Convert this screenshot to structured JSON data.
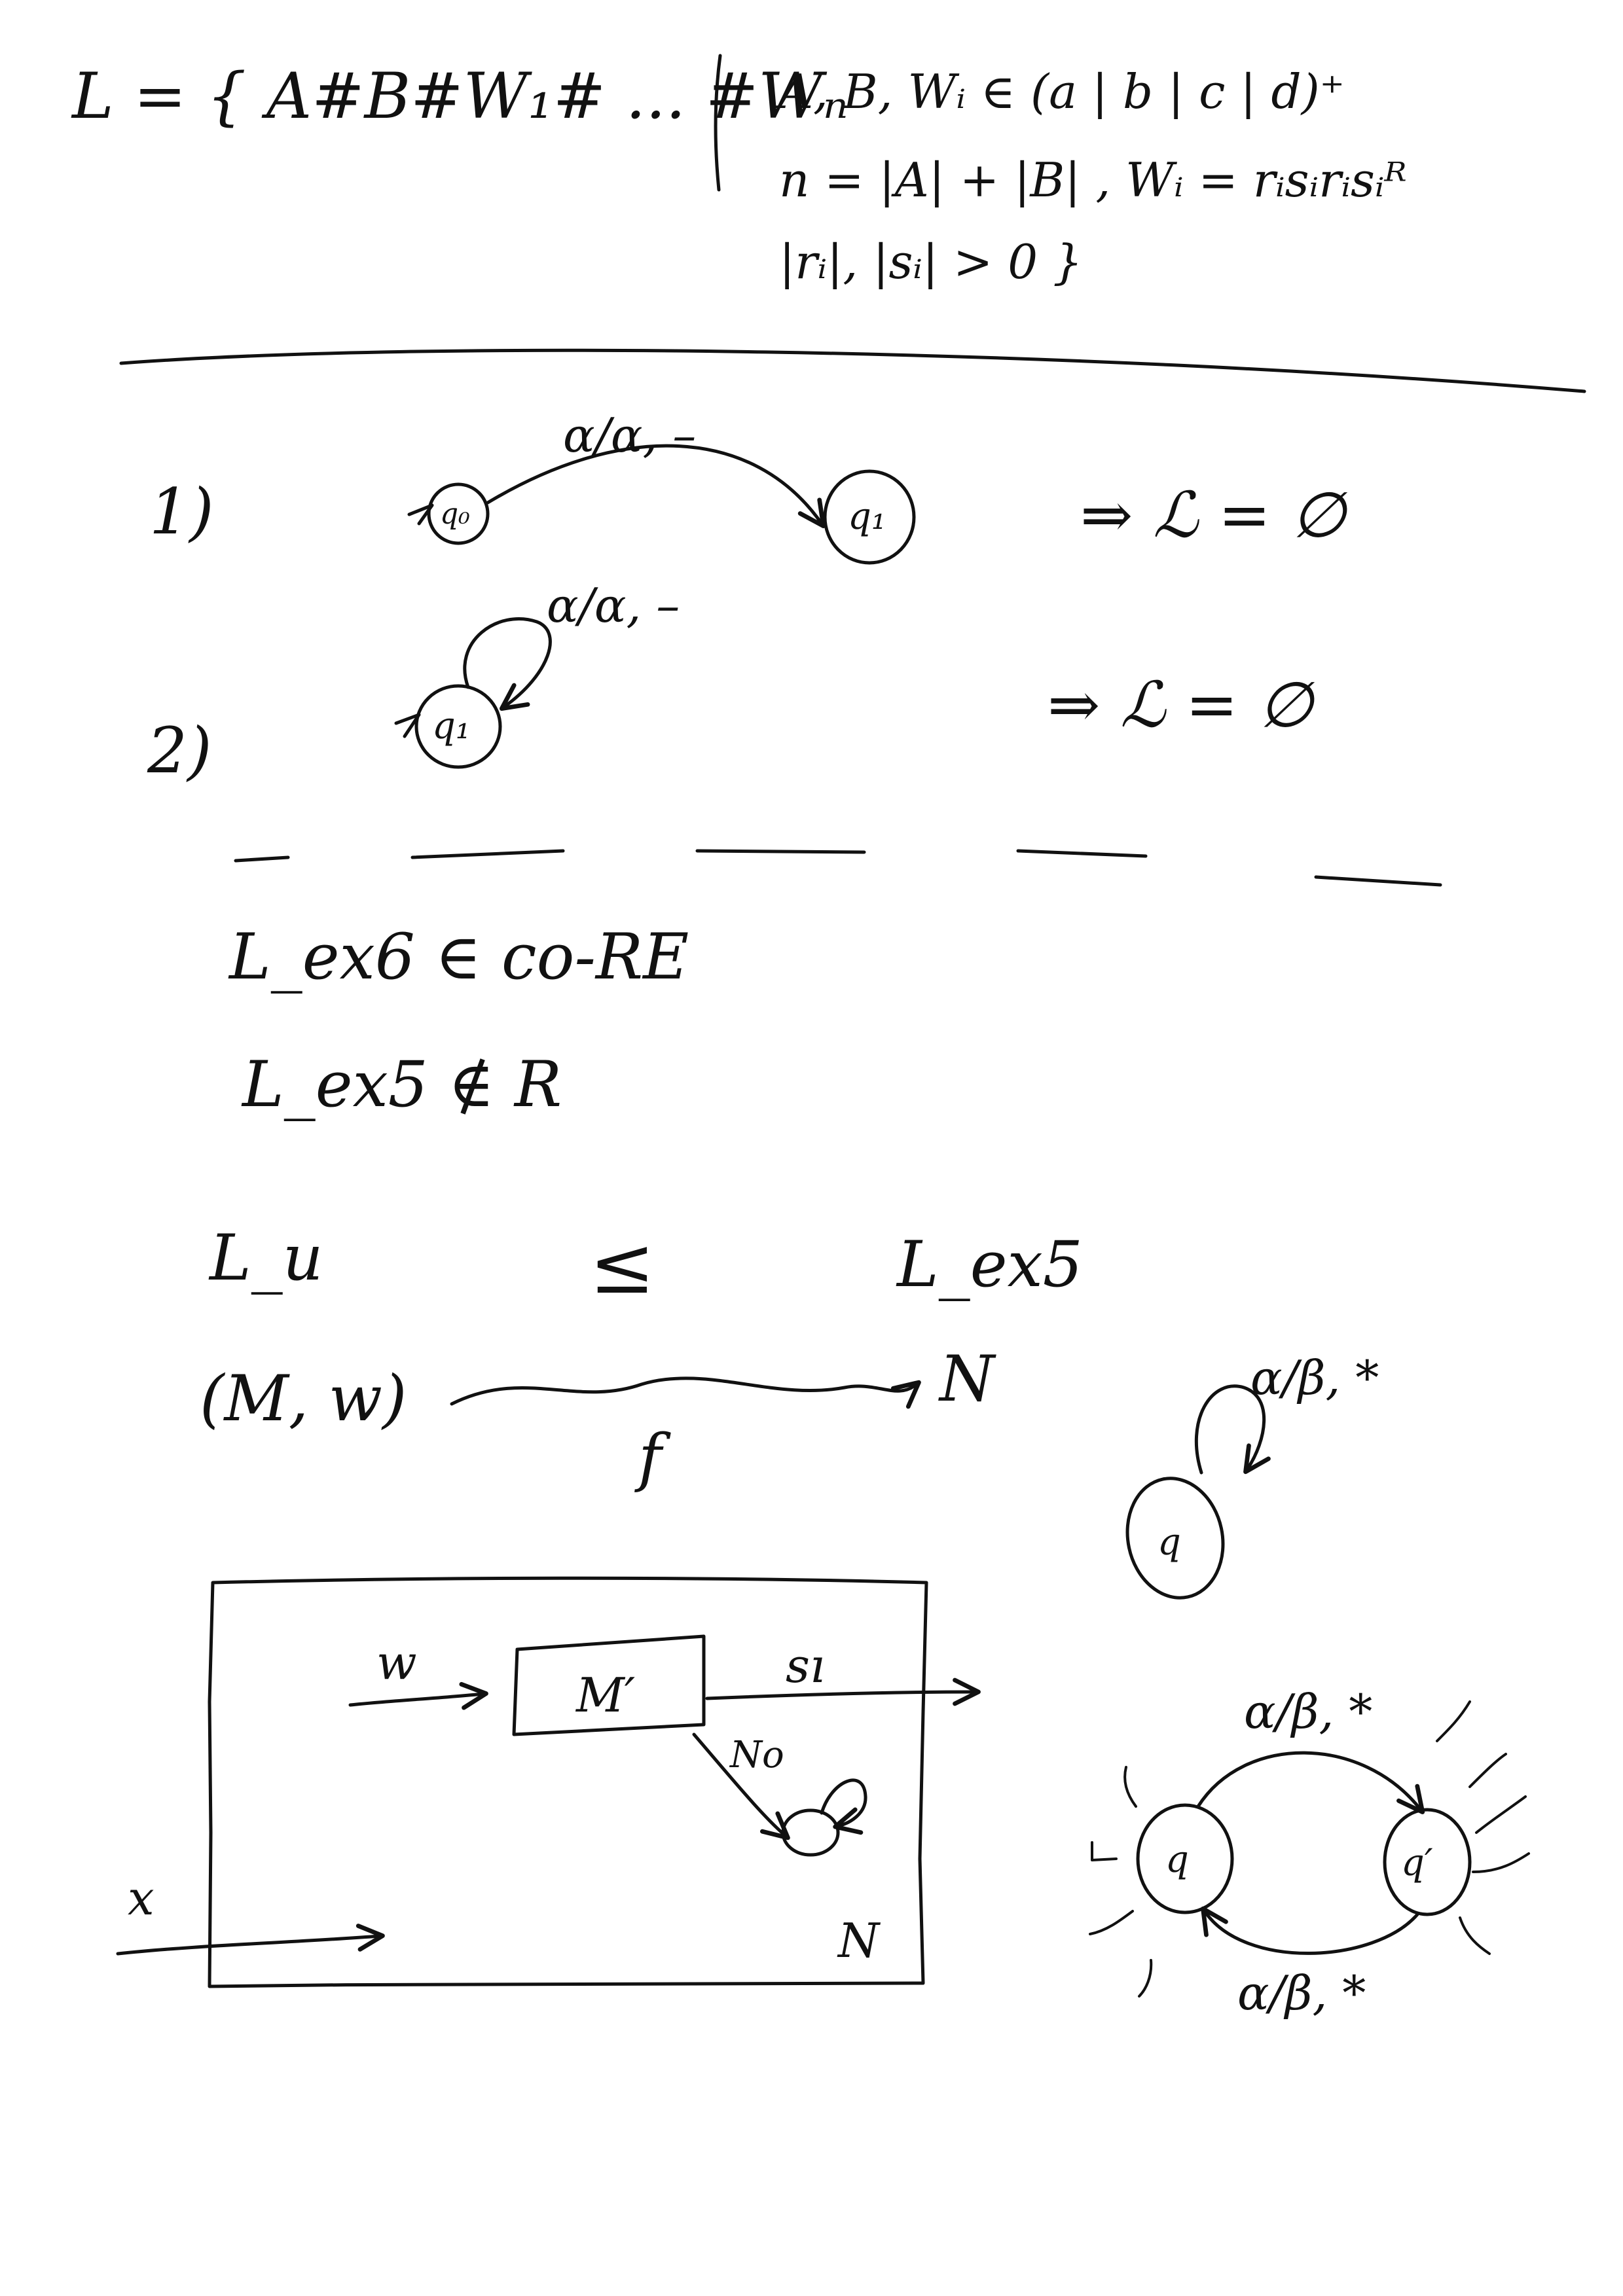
{
  "definition": {
    "line1": "L = { A#B#W₁# ... #Wₙ",
    "cond1": "A, B, Wᵢ ∈ (a | b | c | d)⁺",
    "cond2": "n = |A| + |B| ,  Wᵢ = rᵢsᵢrᵢsᵢᴿ",
    "cond3": "|rᵢ|, |sᵢ| > 0  }"
  },
  "case1": {
    "number": "1)",
    "transition": "α/α, –",
    "start_state": "q₀",
    "end_state": "q₁",
    "result": "⇒ ℒ = ∅"
  },
  "case2": {
    "number": "2)",
    "transition": "α/α, –",
    "state": "q₁",
    "result": "⇒ ℒ = ∅"
  },
  "claims": {
    "claim1": "L_ex6  ∈  co-RE",
    "claim2": "L_ex5  ∉  R"
  },
  "reduction": {
    "left": "L_u",
    "relation": "≤",
    "right": "L_ex5",
    "input": "(M, w)",
    "output": "N",
    "function": "f"
  },
  "loop_state": {
    "transition": "α/β, *",
    "state": "q"
  },
  "machine_box": {
    "input_w": "w",
    "inner": "M′",
    "yes_out": "sı",
    "no_out": "No",
    "input_x": "x",
    "label": "N"
  },
  "two_state": {
    "top_transition": "α/β, *",
    "bottom_transition": "α/β, *",
    "left_state": "q",
    "right_state": "q′"
  }
}
